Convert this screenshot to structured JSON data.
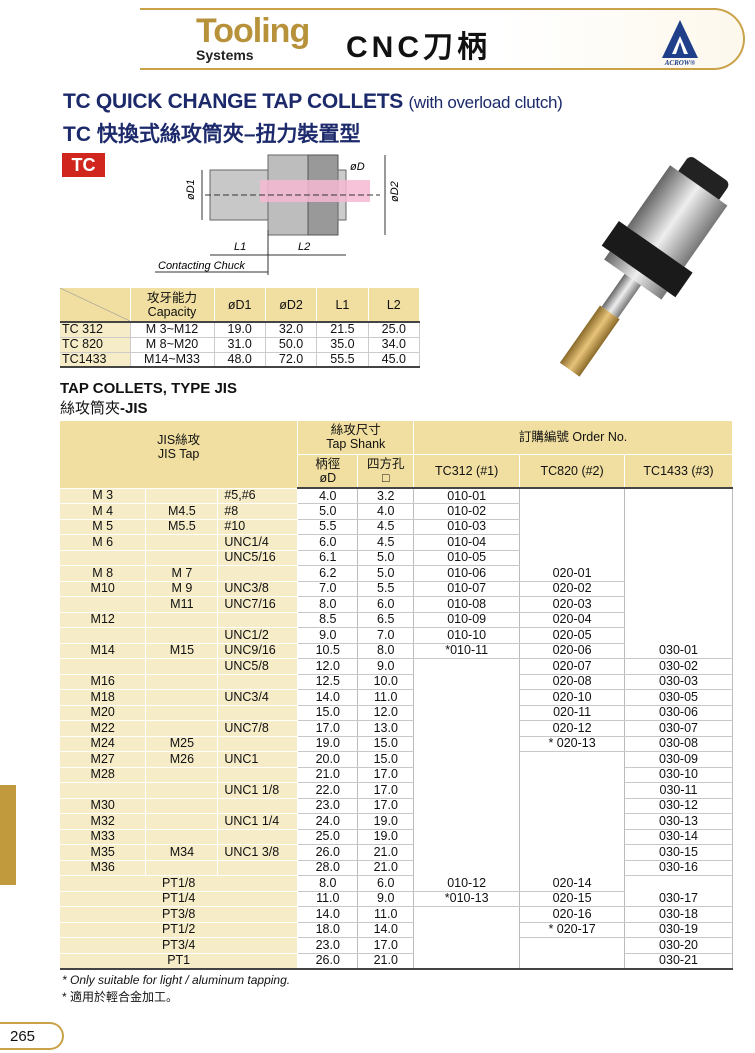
{
  "header": {
    "brand_main": "Tooling",
    "brand_sub": "Systems",
    "category": "CNC刀柄",
    "logo_text": "ACROW®"
  },
  "title": {
    "en": "TC QUICK CHANGE TAP COLLETS",
    "en_note": "(with overload clutch)",
    "zh": "TC 快換式絲攻筒夾–扭力裝置型"
  },
  "badge": "TC",
  "diagram": {
    "d": "øD",
    "d1": "øD1",
    "d2": "øD2",
    "l1": "L1",
    "l2": "L2",
    "contact": "Contacting Chuck"
  },
  "spec_table": {
    "headers": [
      "攻牙能力",
      "Capacity",
      "øD1",
      "øD2",
      "L1",
      "L2"
    ],
    "rows": [
      [
        "TC  312",
        "M  3~M12",
        "19.0",
        "32.0",
        "21.5",
        "25.0"
      ],
      [
        "TC  820",
        "M  8~M20",
        "31.0",
        "50.0",
        "35.0",
        "34.0"
      ],
      [
        "TC1433",
        "M14~M33",
        "48.0",
        "72.0",
        "55.5",
        "45.0"
      ]
    ]
  },
  "section": {
    "en": "TAP COLLETS, TYPE JIS",
    "zh": "絲攻筒夾",
    "zh_suffix": "-JIS"
  },
  "main_table": {
    "h_jis_zh": "JIS絲攻",
    "h_jis_en": "JIS Tap",
    "h_shank_zh": "絲攻尺寸",
    "h_shank_en": "Tap Shank",
    "h_order": "訂購編號  Order No.",
    "h_dia_zh": "柄徑",
    "h_dia_en": "øD",
    "h_sq_zh": "四方孔",
    "h_sq_sym": "□",
    "h_o1": "TC312 (#1)",
    "h_o2": "TC820 (#2)",
    "h_o3": "TC1433 (#3)",
    "rows": [
      [
        "M  3",
        "",
        "#5,#6",
        "4.0",
        "3.2",
        "010-01",
        "",
        ""
      ],
      [
        "M  4",
        "M4.5",
        "#8",
        "5.0",
        "4.0",
        "010-02",
        "",
        ""
      ],
      [
        "M  5",
        "M5.5",
        "#10",
        "5.5",
        "4.5",
        "010-03",
        "",
        ""
      ],
      [
        "M  6",
        "",
        "UNC1/4",
        "6.0",
        "4.5",
        "010-04",
        "",
        ""
      ],
      [
        "",
        "",
        "UNC5/16",
        "6.1",
        "5.0",
        "010-05",
        "",
        ""
      ],
      [
        "M  8",
        "M  7",
        "",
        "6.2",
        "5.0",
        "010-06",
        "020-01",
        ""
      ],
      [
        "M10",
        "M  9",
        "UNC3/8",
        "7.0",
        "5.5",
        "010-07",
        "020-02",
        ""
      ],
      [
        "",
        "M11",
        "UNC7/16",
        "8.0",
        "6.0",
        "010-08",
        "020-03",
        ""
      ],
      [
        "M12",
        "",
        "",
        "8.5",
        "6.5",
        "010-09",
        "020-04",
        ""
      ],
      [
        "",
        "",
        "UNC1/2",
        "9.0",
        "7.0",
        "010-10",
        "020-05",
        ""
      ],
      [
        "M14",
        "M15",
        "UNC9/16",
        "10.5",
        "8.0",
        "*010-11",
        "020-06",
        "030-01"
      ],
      [
        "",
        "",
        "UNC5/8",
        "12.0",
        "9.0",
        "",
        "020-07",
        "030-02"
      ],
      [
        "M16",
        "",
        "",
        "12.5",
        "10.0",
        "",
        "020-08",
        "030-03"
      ],
      [
        "M18",
        "",
        "UNC3/4",
        "14.0",
        "11.0",
        "",
        "020-10",
        "030-05"
      ],
      [
        "M20",
        "",
        "",
        "15.0",
        "12.0",
        "",
        "020-11",
        "030-06"
      ],
      [
        "M22",
        "",
        "UNC7/8",
        "17.0",
        "13.0",
        "",
        "020-12",
        "030-07"
      ],
      [
        "M24",
        "M25",
        "",
        "19.0",
        "15.0",
        "",
        "* 020-13",
        "030-08"
      ],
      [
        "M27",
        "M26",
        "UNC1",
        "20.0",
        "15.0",
        "",
        "",
        "030-09"
      ],
      [
        "M28",
        "",
        "",
        "21.0",
        "17.0",
        "",
        "",
        "030-10"
      ],
      [
        "",
        "",
        "UNC1 1/8",
        "22.0",
        "17.0",
        "",
        "",
        "030-11"
      ],
      [
        "M30",
        "",
        "",
        "23.0",
        "17.0",
        "",
        "",
        "030-12"
      ],
      [
        "M32",
        "",
        "UNC1 1/4",
        "24.0",
        "19.0",
        "",
        "",
        "030-13"
      ],
      [
        "M33",
        "",
        "",
        "25.0",
        "19.0",
        "",
        "",
        "030-14"
      ],
      [
        "M35",
        "M34",
        "UNC1 3/8",
        "26.0",
        "21.0",
        "",
        "",
        "030-15"
      ],
      [
        "M36",
        "",
        "",
        "28.0",
        "21.0",
        "",
        "",
        "030-16"
      ]
    ],
    "pt_rows": [
      [
        "PT1/8",
        "8.0",
        "6.0",
        "010-12",
        "020-14",
        ""
      ],
      [
        "PT1/4",
        "11.0",
        "9.0",
        "*010-13",
        "020-15",
        "030-17"
      ],
      [
        "PT3/8",
        "14.0",
        "11.0",
        "",
        "020-16",
        "030-18"
      ],
      [
        "PT1/2",
        "18.0",
        "14.0",
        "",
        "* 020-17",
        "030-19"
      ],
      [
        "PT3/4",
        "23.0",
        "17.0",
        "",
        "",
        "030-20"
      ],
      [
        "PT1",
        "26.0",
        "21.0",
        "",
        "",
        "030-21"
      ]
    ]
  },
  "notes": {
    "en": "* Only suitable for light / aluminum  tapping.",
    "zh": "* 適用於輕合金加工。"
  },
  "page_number": "265",
  "colors": {
    "gold": "#c9a24a",
    "navy": "#1c2a6b",
    "red": "#d0261e",
    "header_fill": "#f0dfa0"
  }
}
